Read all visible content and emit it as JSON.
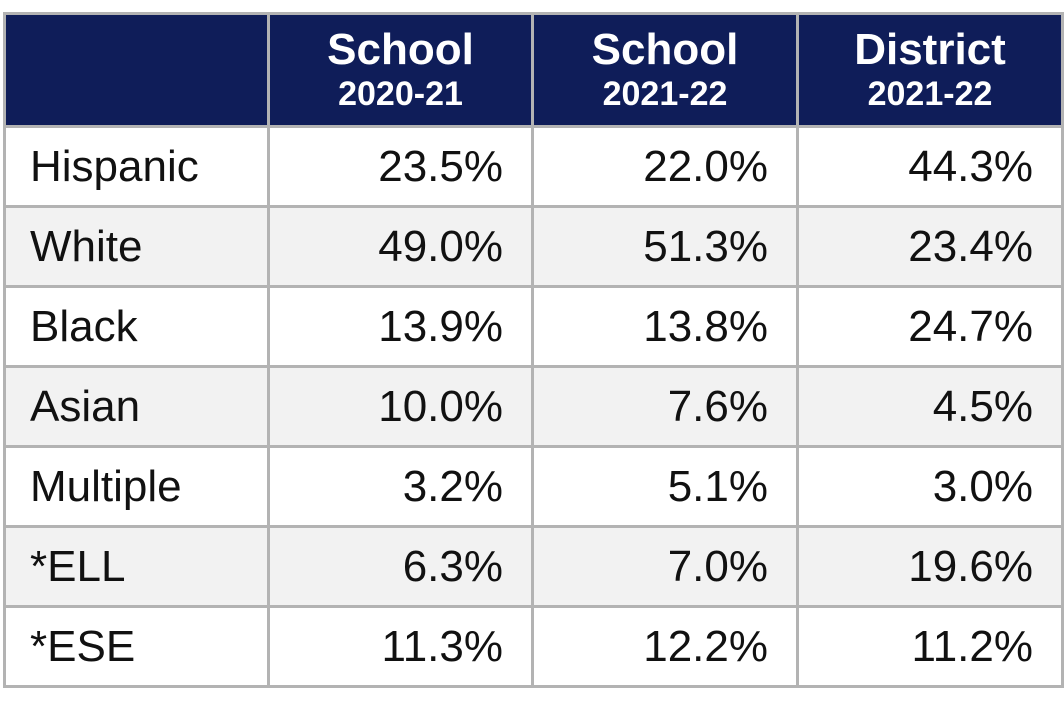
{
  "table": {
    "columns": [
      {
        "title": "School",
        "subtitle": "2020-21"
      },
      {
        "title": "School",
        "subtitle": "2021-22"
      },
      {
        "title": "District",
        "subtitle": "2021-22"
      }
    ],
    "rows": [
      [
        "Hispanic",
        "23.5%",
        "22.0%",
        "44.3%"
      ],
      [
        "White",
        "49.0%",
        "51.3%",
        "23.4%"
      ],
      [
        "Black",
        "13.9%",
        "13.8%",
        "24.7%"
      ],
      [
        "Asian",
        "10.0%",
        "7.6%",
        "4.5%"
      ],
      [
        "Multiple",
        "3.2%",
        "5.1%",
        "3.0%"
      ],
      [
        "*ELL",
        "6.3%",
        "7.0%",
        "19.6%"
      ],
      [
        "*ESE",
        "11.3%",
        "12.2%",
        "11.2%"
      ]
    ]
  }
}
